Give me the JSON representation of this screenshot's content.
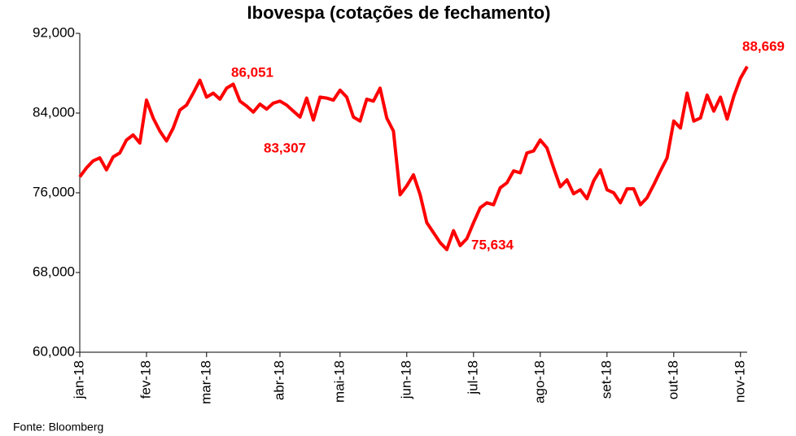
{
  "chart_data": {
    "type": "line",
    "title": "Ibovespa (cotações de fechamento)",
    "source": "Fonte: Bloomberg",
    "categories": [
      "jan-18",
      null,
      null,
      null,
      null,
      null,
      null,
      null,
      null,
      null,
      "fev-18",
      null,
      null,
      null,
      null,
      null,
      null,
      null,
      null,
      "mar-18",
      null,
      null,
      null,
      null,
      null,
      null,
      null,
      null,
      null,
      null,
      "abr-18",
      null,
      null,
      null,
      null,
      null,
      null,
      null,
      null,
      "mai-18",
      null,
      null,
      null,
      null,
      null,
      null,
      null,
      null,
      null,
      "jun-18",
      null,
      null,
      null,
      null,
      null,
      null,
      null,
      null,
      null,
      "jul-18",
      null,
      null,
      null,
      null,
      null,
      null,
      null,
      null,
      null,
      "ago-18",
      null,
      null,
      null,
      null,
      null,
      null,
      null,
      null,
      null,
      "set-18",
      null,
      null,
      null,
      null,
      null,
      null,
      null,
      null,
      null,
      "out-18",
      null,
      null,
      null,
      null,
      null,
      null,
      null,
      null,
      null,
      "nov-18",
      null
    ],
    "series": [
      {
        "name": "Ibovespa",
        "color": "#ff0000",
        "values": [
          77600,
          78500,
          79200,
          79500,
          78300,
          79600,
          80000,
          81300,
          81800,
          81000,
          85300,
          83500,
          82200,
          81200,
          82500,
          84300,
          84800,
          86000,
          87300,
          85600,
          86000,
          85400,
          86500,
          86900,
          85200,
          84700,
          84100,
          84900,
          84400,
          85000,
          85200,
          84800,
          84200,
          83600,
          85500,
          83300,
          85600,
          85500,
          85300,
          86300,
          85600,
          83600,
          83200,
          85400,
          85200,
          86500,
          83500,
          82200,
          75800,
          76700,
          77800,
          75800,
          73000,
          72000,
          71000,
          70300,
          72200,
          70700,
          71400,
          73000,
          74500,
          75000,
          74800,
          76500,
          77000,
          78200,
          78000,
          80000,
          80200,
          81300,
          80500,
          78500,
          76600,
          77300,
          75900,
          76300,
          75400,
          77200,
          78300,
          76300,
          76000,
          75000,
          76400,
          76400,
          74800,
          75500,
          76800,
          78200,
          79500,
          83200,
          82500,
          86000,
          83200,
          83500,
          85800,
          84200,
          85600,
          83400,
          85700,
          87500,
          88669
        ]
      }
    ],
    "annotations": [
      "86,051",
      "83,307",
      "75,634",
      "88,669"
    ],
    "ylim": [
      60000,
      92000
    ],
    "yticks": [
      {
        "value": 60000,
        "label": "60,000"
      },
      {
        "value": 68000,
        "label": "68,000"
      },
      {
        "value": 76000,
        "label": "76,000"
      },
      {
        "value": 84000,
        "label": "84,000"
      },
      {
        "value": 92000,
        "label": "92,000"
      }
    ],
    "grid": false
  }
}
